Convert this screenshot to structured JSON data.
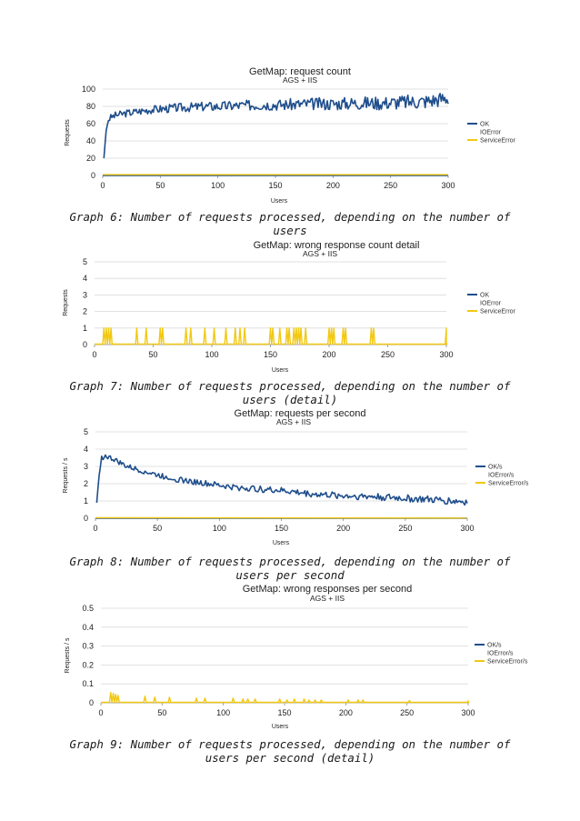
{
  "colors": {
    "ok": "#1f4e8c",
    "io": "#1f4e8c",
    "service": "#f2c811",
    "grid": "#d9d9d9",
    "axis": "#8c8c8c"
  },
  "captions": [
    "Graph 6: Number of requests processed, depending on the number of users",
    "Graph 7: Number of requests processed, depending on the number of users (detail)",
    "Graph 8: Number of requests processed, depending on the number of users per second",
    "Graph 9: Number of requests processed, depending on the number of users per second (detail)"
  ],
  "chart_data": [
    {
      "type": "line",
      "title": "GetMap: request count",
      "subtitle": "AGS + IIS",
      "xlabel": "Users",
      "ylabel": "Requests",
      "xlim": [
        0,
        300
      ],
      "ylim": [
        0,
        100
      ],
      "xticks": [
        0,
        50,
        100,
        150,
        200,
        250,
        300
      ],
      "yticks": [
        0,
        20,
        40,
        60,
        80,
        100
      ],
      "ytick_labels": [
        "0",
        "20",
        "40",
        "60",
        "80",
        "100"
      ],
      "grid": true,
      "legend": "right",
      "series": [
        {
          "name": "OK",
          "color": "#1f4e8c",
          "points": [
            [
              1,
              20
            ],
            [
              3,
              52
            ],
            [
              5,
              65
            ],
            [
              8,
              68
            ],
            [
              12,
              70
            ],
            [
              20,
              72
            ],
            [
              30,
              74
            ],
            [
              40,
              76
            ],
            [
              50,
              77
            ],
            [
              60,
              78
            ],
            [
              75,
              79
            ],
            [
              90,
              80
            ],
            [
              100,
              80
            ],
            [
              120,
              81
            ],
            [
              140,
              82
            ],
            [
              160,
              82
            ],
            [
              180,
              83
            ],
            [
              200,
              83
            ],
            [
              220,
              84
            ],
            [
              240,
              84
            ],
            [
              260,
              85
            ],
            [
              280,
              86
            ],
            [
              290,
              88
            ],
            [
              300,
              90
            ]
          ],
          "noise": [
            4,
            9
          ]
        },
        {
          "name": "IOError",
          "color": "#1f4e8c",
          "points": [
            [
              0,
              0
            ],
            [
              300,
              0
            ]
          ]
        },
        {
          "name": "ServiceError",
          "color": "#f2c811",
          "points": [
            [
              0,
              1
            ],
            [
              300,
              1
            ]
          ]
        }
      ]
    },
    {
      "type": "line",
      "title": "GetMap: wrong response count detail",
      "subtitle": "AGS + IIS",
      "xlabel": "Users",
      "ylabel": "Requests",
      "xlim": [
        0,
        300
      ],
      "ylim": [
        0,
        5
      ],
      "xticks": [
        0,
        50,
        100,
        150,
        200,
        250,
        300
      ],
      "yticks": [
        0,
        1,
        2,
        3,
        4,
        5
      ],
      "ytick_labels": [
        "0",
        "1",
        "2",
        "3",
        "4",
        "5"
      ],
      "grid": true,
      "legend": "right",
      "series": [
        {
          "name": "OK",
          "color": "#1f4e8c",
          "points": []
        },
        {
          "name": "IOError",
          "color": "#1f4e8c",
          "points": []
        },
        {
          "name": "ServiceError",
          "color": "#f2c811",
          "spike_height": 1,
          "spikes": [
            8,
            10,
            12,
            14,
            36,
            44,
            56,
            58,
            78,
            82,
            94,
            102,
            112,
            120,
            124,
            128,
            150,
            152,
            158,
            164,
            166,
            170,
            172,
            174,
            176,
            180,
            200,
            202,
            204,
            212,
            214,
            236,
            238,
            300
          ]
        }
      ]
    },
    {
      "type": "line",
      "title": "GetMap: requests per second",
      "subtitle": "AGS + IIS",
      "xlabel": "Users",
      "ylabel": "Requests / s",
      "xlim": [
        0,
        300
      ],
      "ylim": [
        0,
        5
      ],
      "xticks": [
        0,
        50,
        100,
        150,
        200,
        250,
        300
      ],
      "yticks": [
        0,
        1,
        2,
        3,
        4,
        5
      ],
      "ytick_labels": [
        "0",
        "1",
        "2",
        "3",
        "4",
        "5"
      ],
      "grid": true,
      "legend": "right",
      "series": [
        {
          "name": "OK/s",
          "color": "#1f4e8c",
          "points": [
            [
              1,
              0.9
            ],
            [
              3,
              2.5
            ],
            [
              5,
              3.5
            ],
            [
              8,
              3.6
            ],
            [
              15,
              3.4
            ],
            [
              25,
              3.0
            ],
            [
              35,
              2.8
            ],
            [
              50,
              2.5
            ],
            [
              70,
              2.2
            ],
            [
              90,
              2.0
            ],
            [
              110,
              1.8
            ],
            [
              130,
              1.7
            ],
            [
              150,
              1.6
            ],
            [
              175,
              1.4
            ],
            [
              200,
              1.3
            ],
            [
              225,
              1.25
            ],
            [
              250,
              1.15
            ],
            [
              275,
              1.05
            ],
            [
              300,
              0.95
            ]
          ],
          "noise": [
            0.15,
            0.22
          ]
        },
        {
          "name": "IOError/s",
          "color": "#1f4e8c",
          "points": [
            [
              0,
              0
            ],
            [
              300,
              0
            ]
          ]
        },
        {
          "name": "ServiceError/s",
          "color": "#f2c811",
          "points": [
            [
              0,
              0.03
            ],
            [
              300,
              0.01
            ]
          ]
        }
      ]
    },
    {
      "type": "line",
      "title": "GetMap: wrong responses per second",
      "subtitle": "AGS + IIS",
      "xlabel": "Users",
      "ylabel": "Requests / s",
      "xlim": [
        0,
        300
      ],
      "ylim": [
        0,
        0.5
      ],
      "xticks": [
        0,
        50,
        100,
        150,
        200,
        250,
        300
      ],
      "yticks": [
        0,
        0.1,
        0.2,
        0.3,
        0.4,
        0.5
      ],
      "ytick_labels": [
        "0",
        "0.1",
        "0.2",
        "0.3",
        "0.4",
        "0.5"
      ],
      "grid": true,
      "legend": "right",
      "series": [
        {
          "name": "OK/s",
          "color": "#1f4e8c",
          "points": []
        },
        {
          "name": "IOError/s",
          "color": "#1f4e8c",
          "points": []
        },
        {
          "name": "ServiceError/s",
          "color": "#f2c811",
          "spikes": [
            [
              8,
              0.055
            ],
            [
              10,
              0.05
            ],
            [
              12,
              0.045
            ],
            [
              14,
              0.04
            ],
            [
              36,
              0.035
            ],
            [
              44,
              0.03
            ],
            [
              56,
              0.03
            ],
            [
              78,
              0.025
            ],
            [
              85,
              0.025
            ],
            [
              108,
              0.025
            ],
            [
              116,
              0.02
            ],
            [
              120,
              0.02
            ],
            [
              126,
              0.02
            ],
            [
              146,
              0.02
            ],
            [
              152,
              0.015
            ],
            [
              158,
              0.02
            ],
            [
              166,
              0.02
            ],
            [
              170,
              0.015
            ],
            [
              175,
              0.015
            ],
            [
              180,
              0.015
            ],
            [
              202,
              0.015
            ],
            [
              210,
              0.015
            ],
            [
              214,
              0.015
            ],
            [
              252,
              0.012
            ],
            [
              300,
              0.01
            ]
          ]
        }
      ]
    }
  ]
}
